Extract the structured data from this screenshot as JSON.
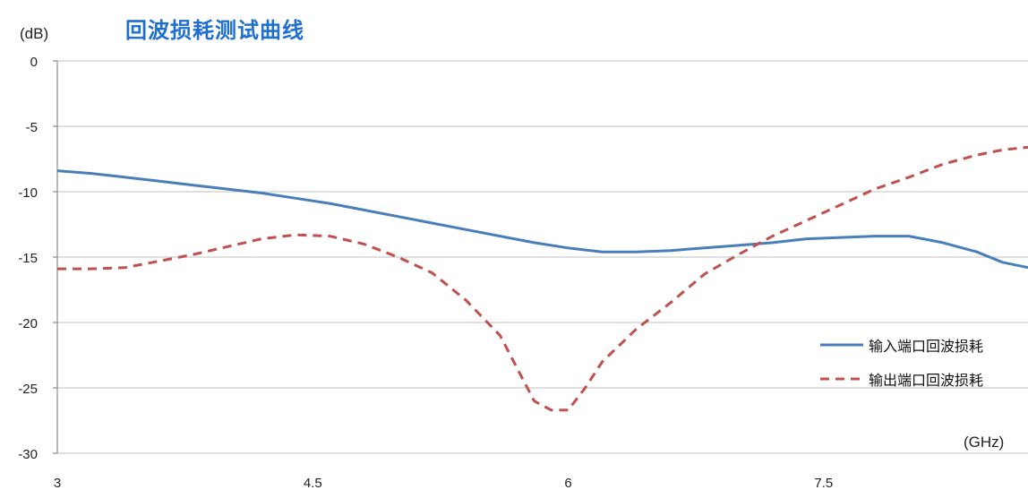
{
  "title": "回波损耗测试曲线",
  "y_unit": "(dB)",
  "x_unit": "(GHz)",
  "chart_data": {
    "type": "line",
    "title": "回波损耗测试曲线",
    "xlabel": "(GHz)",
    "ylabel": "(dB)",
    "xlim": [
      3,
      8.7
    ],
    "ylim": [
      -30,
      0
    ],
    "x_ticks": [
      "3",
      "4.5",
      "6",
      "7.5"
    ],
    "y_ticks": [
      "0",
      "-5",
      "-10",
      "-15",
      "-20",
      "-25",
      "-30"
    ],
    "grid": "horizontal",
    "legend_position": "right",
    "series": [
      {
        "name": "输入端口回波损耗",
        "color": "#4a7ebb",
        "style": "solid",
        "x": [
          3.0,
          3.2,
          3.4,
          3.6,
          3.8,
          4.0,
          4.2,
          4.4,
          4.6,
          4.8,
          5.0,
          5.2,
          5.4,
          5.6,
          5.8,
          6.0,
          6.2,
          6.4,
          6.6,
          6.8,
          7.0,
          7.2,
          7.4,
          7.6,
          7.8,
          8.0,
          8.2,
          8.4,
          8.55,
          8.7
        ],
        "y": [
          -8.4,
          -8.6,
          -8.9,
          -9.2,
          -9.5,
          -9.8,
          -10.1,
          -10.5,
          -10.9,
          -11.4,
          -11.9,
          -12.4,
          -12.9,
          -13.4,
          -13.9,
          -14.3,
          -14.6,
          -14.6,
          -14.5,
          -14.3,
          -14.1,
          -13.9,
          -13.6,
          -13.5,
          -13.4,
          -13.4,
          -13.9,
          -14.6,
          -15.4,
          -15.8
        ]
      },
      {
        "name": "输出端口回波损耗",
        "color": "#c0504d",
        "style": "dashed",
        "x": [
          3.0,
          3.2,
          3.4,
          3.6,
          3.8,
          4.0,
          4.2,
          4.4,
          4.6,
          4.8,
          5.0,
          5.2,
          5.4,
          5.6,
          5.7,
          5.8,
          5.9,
          6.0,
          6.1,
          6.2,
          6.4,
          6.6,
          6.8,
          7.0,
          7.2,
          7.4,
          7.6,
          7.8,
          8.0,
          8.2,
          8.4,
          8.55,
          8.7
        ],
        "y": [
          -15.9,
          -15.9,
          -15.8,
          -15.3,
          -14.8,
          -14.2,
          -13.6,
          -13.3,
          -13.4,
          -14.0,
          -15.0,
          -16.2,
          -18.3,
          -21.0,
          -23.5,
          -26.0,
          -26.7,
          -26.7,
          -25.0,
          -23.0,
          -20.5,
          -18.5,
          -16.3,
          -14.8,
          -13.4,
          -12.2,
          -11.0,
          -9.8,
          -8.9,
          -7.9,
          -7.2,
          -6.8,
          -6.6
        ]
      }
    ]
  },
  "colors": {
    "title": "#1f6fd0",
    "grid": "#bfbfbf"
  }
}
